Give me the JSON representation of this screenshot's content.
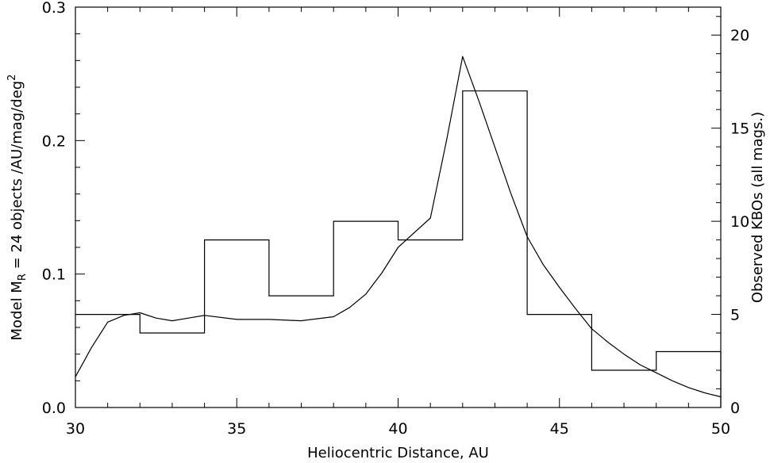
{
  "colors": {
    "background": "#ffffff",
    "ink": "#000000"
  },
  "chart_data": {
    "type": "line",
    "title": "",
    "xlabel": "Heliocentric Distance, AU",
    "ylabel_left": {
      "prefix": "Model M",
      "prefix_sub": "R",
      "middle": " = 24 objects /AU/mag/deg",
      "suffix_sup": "2"
    },
    "ylabel_right": "Observed KBOs (all mags.)",
    "xlim": [
      30,
      50
    ],
    "ylim_left": [
      0,
      0.3
    ],
    "ylim_right": [
      0,
      21.5
    ],
    "x_ticks": [
      {
        "value": 30,
        "label": "30"
      },
      {
        "value": 35,
        "label": "35"
      },
      {
        "value": 40,
        "label": "40"
      },
      {
        "value": 45,
        "label": "45"
      },
      {
        "value": 50,
        "label": "50"
      }
    ],
    "y_left_ticks": [
      {
        "value": 0.0,
        "label": "0.0"
      },
      {
        "value": 0.1,
        "label": "0.1"
      },
      {
        "value": 0.2,
        "label": "0.2"
      },
      {
        "value": 0.3,
        "label": "0.3"
      }
    ],
    "y_right_ticks": [
      {
        "value": 0,
        "label": "0"
      },
      {
        "value": 5,
        "label": "5"
      },
      {
        "value": 10,
        "label": "10"
      },
      {
        "value": 15,
        "label": "15"
      },
      {
        "value": 20,
        "label": "20"
      }
    ],
    "grid": false,
    "series": [
      {
        "kind": "line",
        "axis": "left",
        "x": [
          30,
          30.5,
          31,
          31.5,
          32,
          32.5,
          33,
          33.5,
          34,
          35,
          36,
          37,
          38,
          38.5,
          39,
          39.5,
          40,
          41,
          41.5,
          42,
          42.5,
          43,
          43.5,
          44,
          44.5,
          45,
          45.5,
          46,
          46.5,
          47,
          47.5,
          48,
          48.5,
          49,
          49.5,
          50
        ],
        "values": [
          0.023,
          0.045,
          0.064,
          0.069,
          0.071,
          0.067,
          0.065,
          0.067,
          0.069,
          0.066,
          0.066,
          0.065,
          0.068,
          0.075,
          0.085,
          0.101,
          0.12,
          0.142,
          0.2,
          0.263,
          0.23,
          0.195,
          0.16,
          0.128,
          0.107,
          0.09,
          0.074,
          0.059,
          0.049,
          0.04,
          0.032,
          0.026,
          0.02,
          0.015,
          0.011,
          0.008
        ]
      },
      {
        "kind": "histogram",
        "axis": "right",
        "bin_edges": [
          30,
          32,
          34,
          36,
          38,
          40,
          42,
          44,
          46,
          48,
          50
        ],
        "values": [
          5,
          4,
          9,
          6,
          10,
          9,
          17,
          5,
          2,
          3
        ]
      }
    ]
  }
}
